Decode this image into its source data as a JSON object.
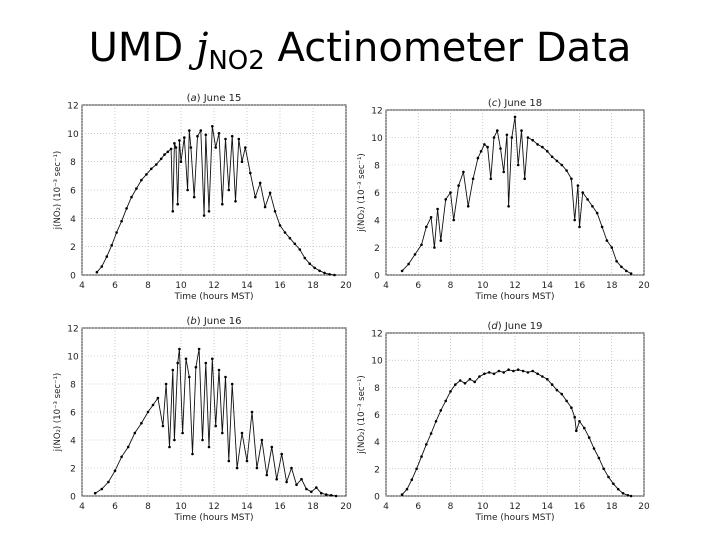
{
  "slide": {
    "title_pre": "UMD ",
    "title_j": "j",
    "title_sub": "NO2",
    "title_post": " Actinometer Data"
  },
  "chart_data": [
    {
      "type": "scatter",
      "panel_letter": "a",
      "title": "June 15",
      "xlabel": "Time (hours MST)",
      "ylabel": "j(NO₂) (10⁻³ sec⁻¹)",
      "xlim": [
        4,
        20
      ],
      "ylim": [
        0,
        12
      ],
      "xticks": [
        4,
        6,
        8,
        10,
        12,
        14,
        16,
        18,
        20
      ],
      "yticks": [
        0,
        2,
        4,
        6,
        8,
        10,
        12
      ],
      "grid": true,
      "series": [
        {
          "x": [
            4.9,
            5.2,
            5.5,
            5.8,
            6.1,
            6.4,
            6.7,
            7.0,
            7.3,
            7.6,
            7.9,
            8.2,
            8.5,
            8.8,
            9.0,
            9.2,
            9.4,
            9.5,
            9.6,
            9.7,
            9.8,
            9.9,
            10.0,
            10.2,
            10.4,
            10.5,
            10.6,
            10.8,
            11.0,
            11.2,
            11.4,
            11.5,
            11.7,
            11.9,
            12.1,
            12.3,
            12.5,
            12.7,
            12.9,
            13.1,
            13.3,
            13.5,
            13.7,
            13.9,
            14.2,
            14.5,
            14.8,
            15.1,
            15.4,
            15.7,
            16.0,
            16.3,
            16.6,
            16.9,
            17.2,
            17.5,
            17.8,
            18.1,
            18.4,
            18.7,
            19.0,
            19.3
          ],
          "y": [
            0.2,
            0.6,
            1.3,
            2.1,
            3.0,
            3.8,
            4.7,
            5.5,
            6.1,
            6.7,
            7.1,
            7.5,
            7.8,
            8.2,
            8.5,
            8.7,
            8.9,
            4.5,
            9.3,
            9.0,
            5.0,
            9.5,
            8.0,
            9.7,
            6.0,
            10.2,
            9.0,
            5.5,
            9.8,
            10.2,
            4.2,
            9.9,
            4.5,
            10.5,
            9.0,
            10.0,
            5.0,
            9.6,
            6.0,
            9.8,
            5.2,
            9.6,
            8.0,
            9.0,
            7.2,
            5.5,
            6.5,
            4.8,
            5.8,
            4.5,
            3.5,
            3.0,
            2.6,
            2.2,
            1.8,
            1.2,
            0.8,
            0.5,
            0.3,
            0.15,
            0.05,
            0.0
          ]
        }
      ]
    },
    {
      "type": "scatter",
      "panel_letter": "c",
      "title": "June 18",
      "xlabel": "Time (hours MST)",
      "ylabel": "j(NO₂) (10⁻³ sec⁻¹)",
      "xlim": [
        4,
        20
      ],
      "ylim": [
        0,
        12
      ],
      "xticks": [
        4,
        6,
        8,
        10,
        12,
        14,
        16,
        18,
        20
      ],
      "yticks": [
        0,
        2,
        4,
        6,
        8,
        10,
        12
      ],
      "grid": true,
      "series": [
        {
          "x": [
            5.0,
            5.4,
            5.8,
            6.2,
            6.5,
            6.8,
            7.0,
            7.2,
            7.4,
            7.7,
            8.0,
            8.2,
            8.5,
            8.8,
            9.1,
            9.4,
            9.7,
            9.9,
            10.1,
            10.3,
            10.5,
            10.7,
            10.9,
            11.1,
            11.3,
            11.5,
            11.6,
            11.8,
            12.0,
            12.2,
            12.4,
            12.6,
            12.8,
            13.1,
            13.4,
            13.7,
            14.0,
            14.3,
            14.6,
            14.9,
            15.2,
            15.5,
            15.7,
            15.9,
            16.0,
            16.2,
            16.5,
            16.8,
            17.1,
            17.4,
            17.7,
            18.0,
            18.3,
            18.6,
            18.9,
            19.2
          ],
          "y": [
            0.3,
            0.8,
            1.5,
            2.2,
            3.5,
            4.2,
            2.0,
            4.8,
            2.5,
            5.5,
            6.0,
            4.0,
            6.5,
            7.5,
            5.0,
            7.0,
            8.5,
            9.0,
            9.5,
            9.3,
            7.0,
            10.0,
            10.5,
            9.2,
            7.5,
            10.2,
            5.0,
            10.0,
            11.5,
            8.0,
            10.5,
            7.0,
            10.0,
            9.8,
            9.5,
            9.3,
            9.0,
            8.6,
            8.3,
            8.0,
            7.6,
            7.0,
            4.0,
            6.5,
            3.5,
            6.0,
            5.5,
            5.0,
            4.5,
            3.5,
            2.5,
            2.0,
            1.0,
            0.6,
            0.3,
            0.1
          ]
        }
      ]
    },
    {
      "type": "scatter",
      "panel_letter": "b",
      "title": "June 16",
      "xlabel": "Time (hours MST)",
      "ylabel": "j(NO₂) (10⁻³ sec⁻¹)",
      "xlim": [
        4,
        20
      ],
      "ylim": [
        0,
        12
      ],
      "xticks": [
        4,
        6,
        8,
        10,
        12,
        14,
        16,
        18,
        20
      ],
      "yticks": [
        0,
        2,
        4,
        6,
        8,
        10,
        12
      ],
      "grid": true,
      "series": [
        {
          "x": [
            4.8,
            5.2,
            5.6,
            6.0,
            6.4,
            6.8,
            7.2,
            7.6,
            8.0,
            8.3,
            8.6,
            8.9,
            9.1,
            9.3,
            9.5,
            9.6,
            9.8,
            9.9,
            10.1,
            10.3,
            10.5,
            10.7,
            10.9,
            11.1,
            11.3,
            11.5,
            11.7,
            11.9,
            12.1,
            12.3,
            12.5,
            12.7,
            12.9,
            13.1,
            13.4,
            13.7,
            14.0,
            14.3,
            14.6,
            14.9,
            15.2,
            15.5,
            15.8,
            16.1,
            16.4,
            16.7,
            17.0,
            17.3,
            17.6,
            17.9,
            18.2,
            18.5,
            18.8,
            19.1,
            19.4
          ],
          "y": [
            0.2,
            0.5,
            1.0,
            1.8,
            2.8,
            3.5,
            4.5,
            5.2,
            6.0,
            6.5,
            7.0,
            5.0,
            8.0,
            3.5,
            9.0,
            4.0,
            9.5,
            10.5,
            4.5,
            9.8,
            8.5,
            3.0,
            9.2,
            10.5,
            4.0,
            9.5,
            3.5,
            9.8,
            5.0,
            9.0,
            4.5,
            8.5,
            2.5,
            8.0,
            2.0,
            4.5,
            2.5,
            6.0,
            2.0,
            4.0,
            1.5,
            3.5,
            1.2,
            3.0,
            1.0,
            2.0,
            0.8,
            1.2,
            0.5,
            0.3,
            0.6,
            0.2,
            0.1,
            0.05,
            0.0
          ]
        }
      ]
    },
    {
      "type": "scatter",
      "panel_letter": "d",
      "title": "June 19",
      "xlabel": "Time (hours MST)",
      "ylabel": "j(NO₂) (10⁻³ sec⁻¹)",
      "xlim": [
        4,
        20
      ],
      "ylim": [
        0,
        12
      ],
      "xticks": [
        4,
        6,
        8,
        10,
        12,
        14,
        16,
        18,
        20
      ],
      "yticks": [
        0,
        2,
        4,
        6,
        8,
        10,
        12
      ],
      "grid": true,
      "series": [
        {
          "x": [
            5.0,
            5.3,
            5.6,
            5.9,
            6.2,
            6.5,
            6.8,
            7.1,
            7.4,
            7.7,
            8.0,
            8.3,
            8.6,
            8.9,
            9.2,
            9.5,
            9.8,
            10.1,
            10.4,
            10.7,
            11.0,
            11.3,
            11.6,
            11.9,
            12.2,
            12.5,
            12.8,
            13.1,
            13.4,
            13.7,
            14.0,
            14.3,
            14.6,
            14.9,
            15.2,
            15.5,
            15.7,
            15.8,
            16.0,
            16.3,
            16.6,
            16.9,
            17.2,
            17.5,
            17.8,
            18.1,
            18.4,
            18.7,
            19.0,
            19.2
          ],
          "y": [
            0.1,
            0.5,
            1.2,
            2.0,
            2.9,
            3.8,
            4.6,
            5.5,
            6.3,
            7.0,
            7.7,
            8.2,
            8.5,
            8.3,
            8.6,
            8.4,
            8.8,
            9.0,
            9.1,
            9.0,
            9.2,
            9.1,
            9.3,
            9.2,
            9.3,
            9.2,
            9.1,
            9.2,
            9.0,
            8.8,
            8.6,
            8.2,
            7.8,
            7.5,
            7.0,
            6.5,
            5.8,
            4.8,
            5.5,
            5.0,
            4.3,
            3.5,
            2.8,
            2.0,
            1.4,
            0.9,
            0.5,
            0.2,
            0.05,
            0.0
          ]
        }
      ]
    }
  ]
}
